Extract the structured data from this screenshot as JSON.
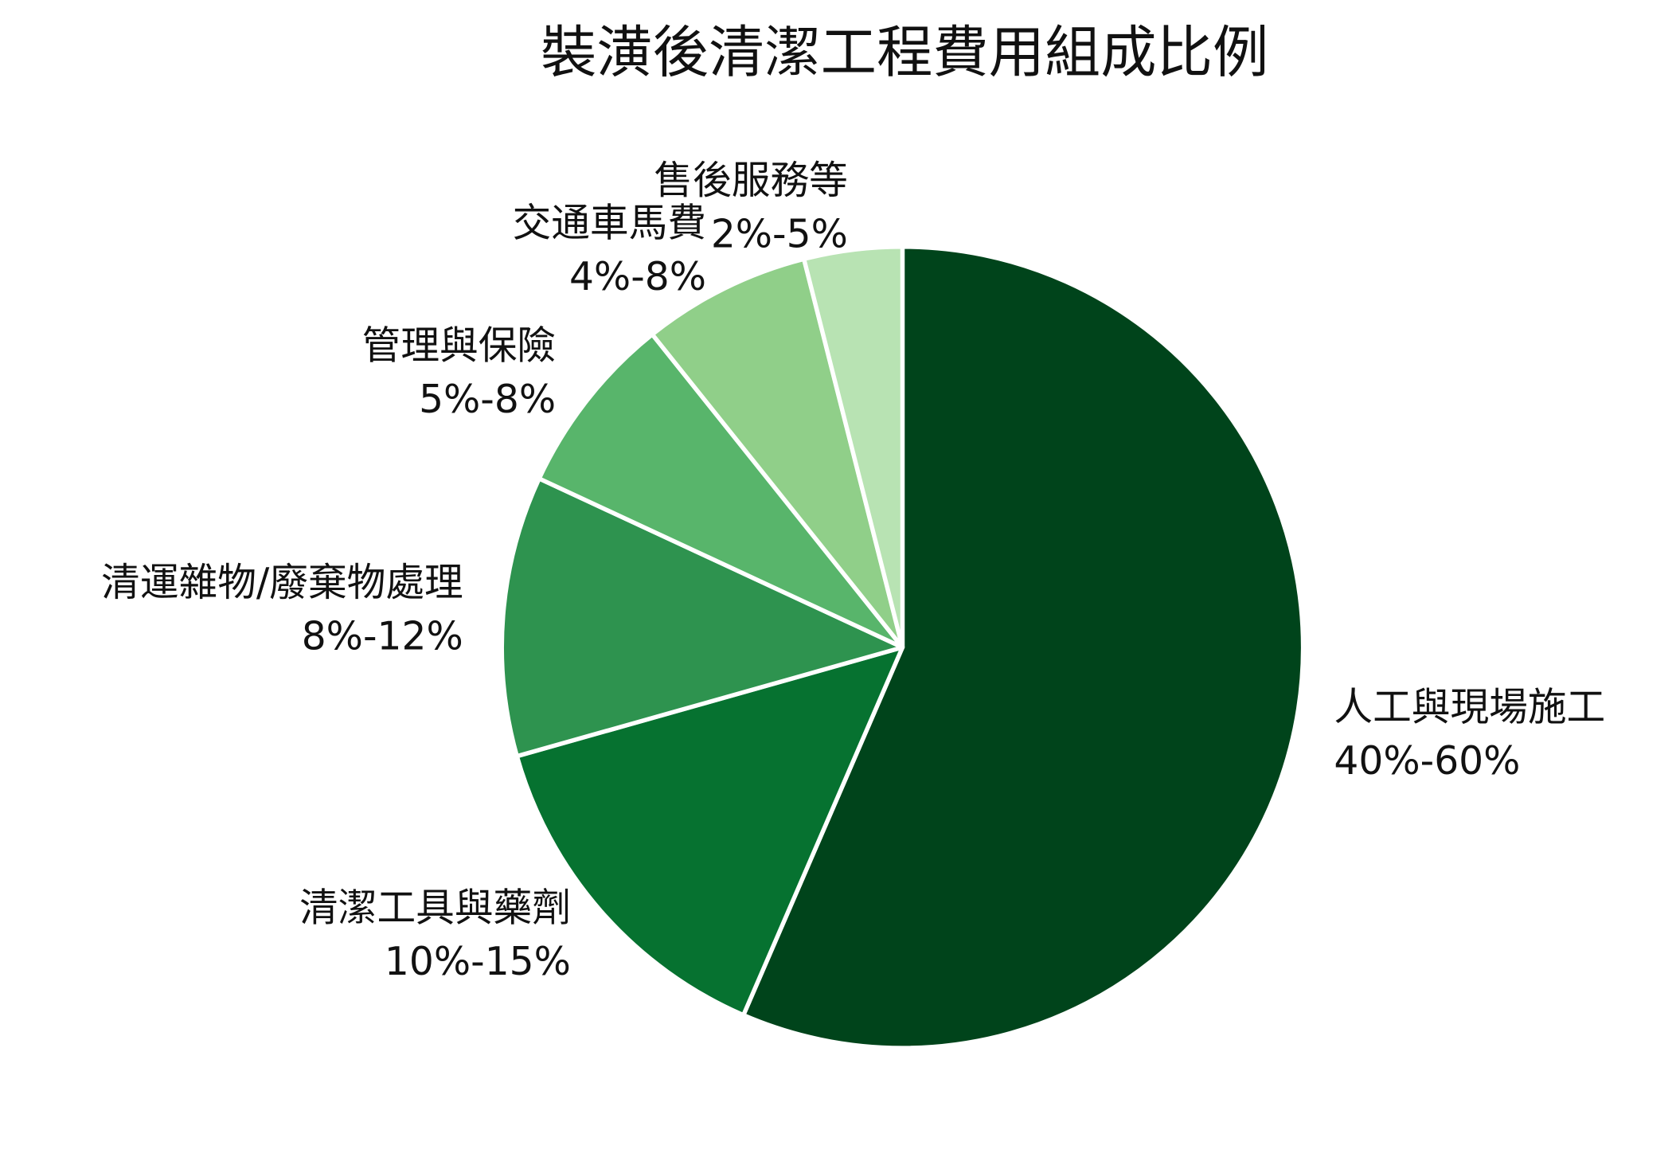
{
  "chart_data": {
    "type": "pie",
    "title": "裝潢後清潔工程費用組成比例",
    "categories": [
      "人工與現場施工",
      "清潔工具與藥劑",
      "清運雜物/廢棄物處理",
      "管理與保險",
      "交通車馬費",
      "售後服務等"
    ],
    "values": [
      50,
      12.5,
      10,
      6.5,
      6,
      3.5
    ],
    "value_labels": [
      "40%-60%",
      "10%-15%",
      "8%-12%",
      "5%-8%",
      "4%-8%",
      "2%-5%"
    ],
    "colors": [
      "#00441b",
      "#067230",
      "#2e934f",
      "#58b56b",
      "#90cf89",
      "#b8e3b3"
    ]
  }
}
